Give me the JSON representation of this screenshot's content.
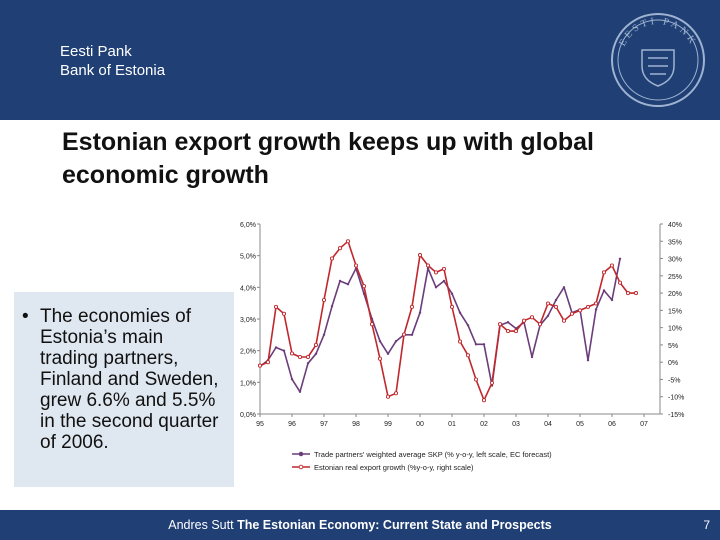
{
  "header": {
    "brand_line1": "Eesti Pank",
    "brand_line2": "Bank of Estonia",
    "seal_text": "EESTI PANK"
  },
  "slide": {
    "title": "Estonian export growth keeps up with global economic growth",
    "bullet_symbol": "•",
    "bullet_text": "The economies of Estonia’s main trading partners, Finland and Sweden, grew 6.6% and 5.5% in the second quarter of 2006."
  },
  "footer": {
    "author": "Andres Sutt",
    "presentation_title": "The Estonian Economy: Current State and Prospects",
    "page_number": "7"
  },
  "colors": {
    "header_bg": "#1f3f75",
    "partners_series": "#6b3d7a",
    "exports_series": "#c0282d"
  },
  "chart_data": {
    "type": "line",
    "title": "",
    "left_axis": {
      "range": [
        0,
        6
      ],
      "ticks": [
        "6,0%",
        "5,0%",
        "4,0%",
        "3,0%",
        "2,0%",
        "1,0%",
        "0,0%"
      ]
    },
    "right_axis": {
      "range": [
        -15,
        40
      ],
      "ticks": [
        "40%",
        "35%",
        "30%",
        "25%",
        "20%",
        "15%",
        "10%",
        "5%",
        "0%",
        "-5%",
        "-10%",
        "-15%"
      ]
    },
    "x_range": [
      1995,
      2007.5
    ],
    "x_ticks": [
      "95",
      "96",
      "97",
      "98",
      "99",
      "00",
      "01",
      "02",
      "03",
      "04",
      "05",
      "06",
      "07"
    ],
    "legend_position": "bottom",
    "series": [
      {
        "name": "Trade partners' weighted average SKP (% y-o-y, left scale, EC forecast)",
        "axis": "left",
        "x": [
          1995.0,
          1995.25,
          1995.5,
          1995.75,
          1996.0,
          1996.25,
          1996.5,
          1996.75,
          1997.0,
          1997.25,
          1997.5,
          1997.75,
          1998.0,
          1998.25,
          1998.5,
          1998.75,
          1999.0,
          1999.25,
          1999.5,
          1999.75,
          2000.0,
          2000.25,
          2000.5,
          2000.75,
          2001.0,
          2001.25,
          2001.5,
          2001.75,
          2002.0,
          2002.25,
          2002.5,
          2002.75,
          2003.0,
          2003.25,
          2003.5,
          2003.75,
          2004.0,
          2004.25,
          2004.5,
          2004.75,
          2005.0,
          2005.25,
          2005.5,
          2005.75,
          2006.0,
          2006.25
        ],
        "values": [
          1.5,
          1.7,
          2.1,
          2.0,
          1.1,
          0.7,
          1.6,
          1.9,
          2.5,
          3.4,
          4.2,
          4.1,
          4.6,
          3.8,
          3.0,
          2.3,
          1.9,
          2.3,
          2.5,
          2.5,
          3.2,
          4.6,
          4.0,
          4.2,
          3.8,
          3.2,
          2.8,
          2.2,
          2.2,
          0.9,
          2.8,
          2.9,
          2.7,
          2.9,
          1.8,
          2.8,
          3.1,
          3.6,
          4.0,
          3.2,
          3.3,
          1.7,
          3.3,
          3.9,
          3.6,
          4.9
        ]
      },
      {
        "name": "Estonian real export growth (%y-o-y, right scale)",
        "axis": "right",
        "x": [
          1995.0,
          1995.25,
          1995.5,
          1995.75,
          1996.0,
          1996.25,
          1996.5,
          1996.75,
          1997.0,
          1997.25,
          1997.5,
          1997.75,
          1998.0,
          1998.25,
          1998.5,
          1998.75,
          1999.0,
          1999.25,
          1999.5,
          1999.75,
          2000.0,
          2000.25,
          2000.5,
          2000.75,
          2001.0,
          2001.25,
          2001.5,
          2001.75,
          2002.0,
          2002.25,
          2002.5,
          2002.75,
          2003.0,
          2003.25,
          2003.5,
          2003.75,
          2004.0,
          2004.25,
          2004.5,
          2004.75,
          2005.0,
          2005.25,
          2005.5,
          2005.75,
          2006.0,
          2006.25,
          2006.5,
          2006.75
        ],
        "values": [
          -1.0,
          0.0,
          16.0,
          14.0,
          2.5,
          1.5,
          1.5,
          5.0,
          18.0,
          30.0,
          33.0,
          35.0,
          28.0,
          22.0,
          11.0,
          1.0,
          -10.0,
          -9.0,
          8.0,
          16.0,
          31.0,
          28.0,
          26.0,
          27.0,
          16.0,
          6.0,
          2.0,
          -5.0,
          -11.0,
          -6.0,
          11.0,
          9.0,
          9.0,
          12.0,
          13.0,
          11.0,
          17.0,
          16.0,
          12.0,
          14.0,
          15.0,
          16.0,
          17.0,
          26.0,
          28.0,
          23.0,
          20.0,
          20.0
        ]
      }
    ]
  }
}
